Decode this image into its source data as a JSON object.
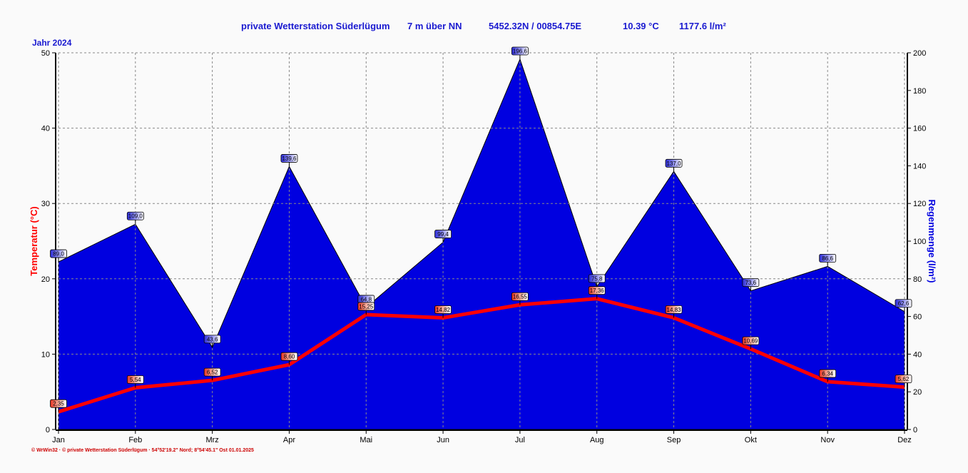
{
  "header": {
    "station": "private Wetterstation Süderlügum",
    "altitude": "7 m über NN",
    "coords": "5452.32N / 00854.75E",
    "avg_temp": "10.39 °C",
    "total_rain": "1177.6 l/m²"
  },
  "year_label": "Jahr  2024",
  "footer": "© WrWin32  ·  © private Wetterstation Süderlügum  ·  54°52'19.2\" Nord; 8°54'45.1\" Ost   01.01.2025",
  "colors": {
    "rain": "#0000e0",
    "temp": "#ff0000",
    "title": "#1a1ad0"
  },
  "chart_data": {
    "type": "area",
    "categories": [
      "Jan",
      "Feb",
      "Mrz",
      "Apr",
      "Mai",
      "Jun",
      "Jul",
      "Aug",
      "Sep",
      "Okt",
      "Nov",
      "Dez"
    ],
    "series": [
      {
        "name": "",
        "type": "area",
        "axis": "right",
        "values": [
          89.0,
          109.0,
          43.6,
          139.6,
          64.8,
          99.4,
          196.6,
          75.8,
          137.0,
          73.6,
          86.6,
          62.6
        ],
        "labels": [
          "89,0",
          "109,0",
          "43,6",
          "139,6",
          "64,8",
          "99,4",
          "196,6",
          "75,8",
          "137,0",
          "73,6",
          "86,6",
          "62,6"
        ]
      },
      {
        "name": "",
        "type": "line",
        "axis": "left",
        "values": [
          2.35,
          5.54,
          6.52,
          8.6,
          15.25,
          14.82,
          16.55,
          17.36,
          14.83,
          10.69,
          6.34,
          5.62
        ],
        "labels": [
          "2,35",
          "5,54",
          "6,52",
          "8,60",
          "15,25",
          "14,82",
          "16,55",
          "17,36",
          "14,83",
          "10,69",
          "6,34",
          "5,62"
        ]
      }
    ],
    "ylabel": "Temperatur  (°C)",
    "y2label": "Regenmenge   (l/m²)",
    "ylim": [
      0,
      50
    ],
    "y2lim": [
      0,
      200
    ],
    "yticks": [
      "0",
      "10",
      "20",
      "30",
      "40",
      "50"
    ],
    "y2ticks": [
      "0",
      "20",
      "40",
      "60",
      "80",
      "100",
      "120",
      "140",
      "160",
      "180",
      "200"
    ],
    "grid": true
  }
}
